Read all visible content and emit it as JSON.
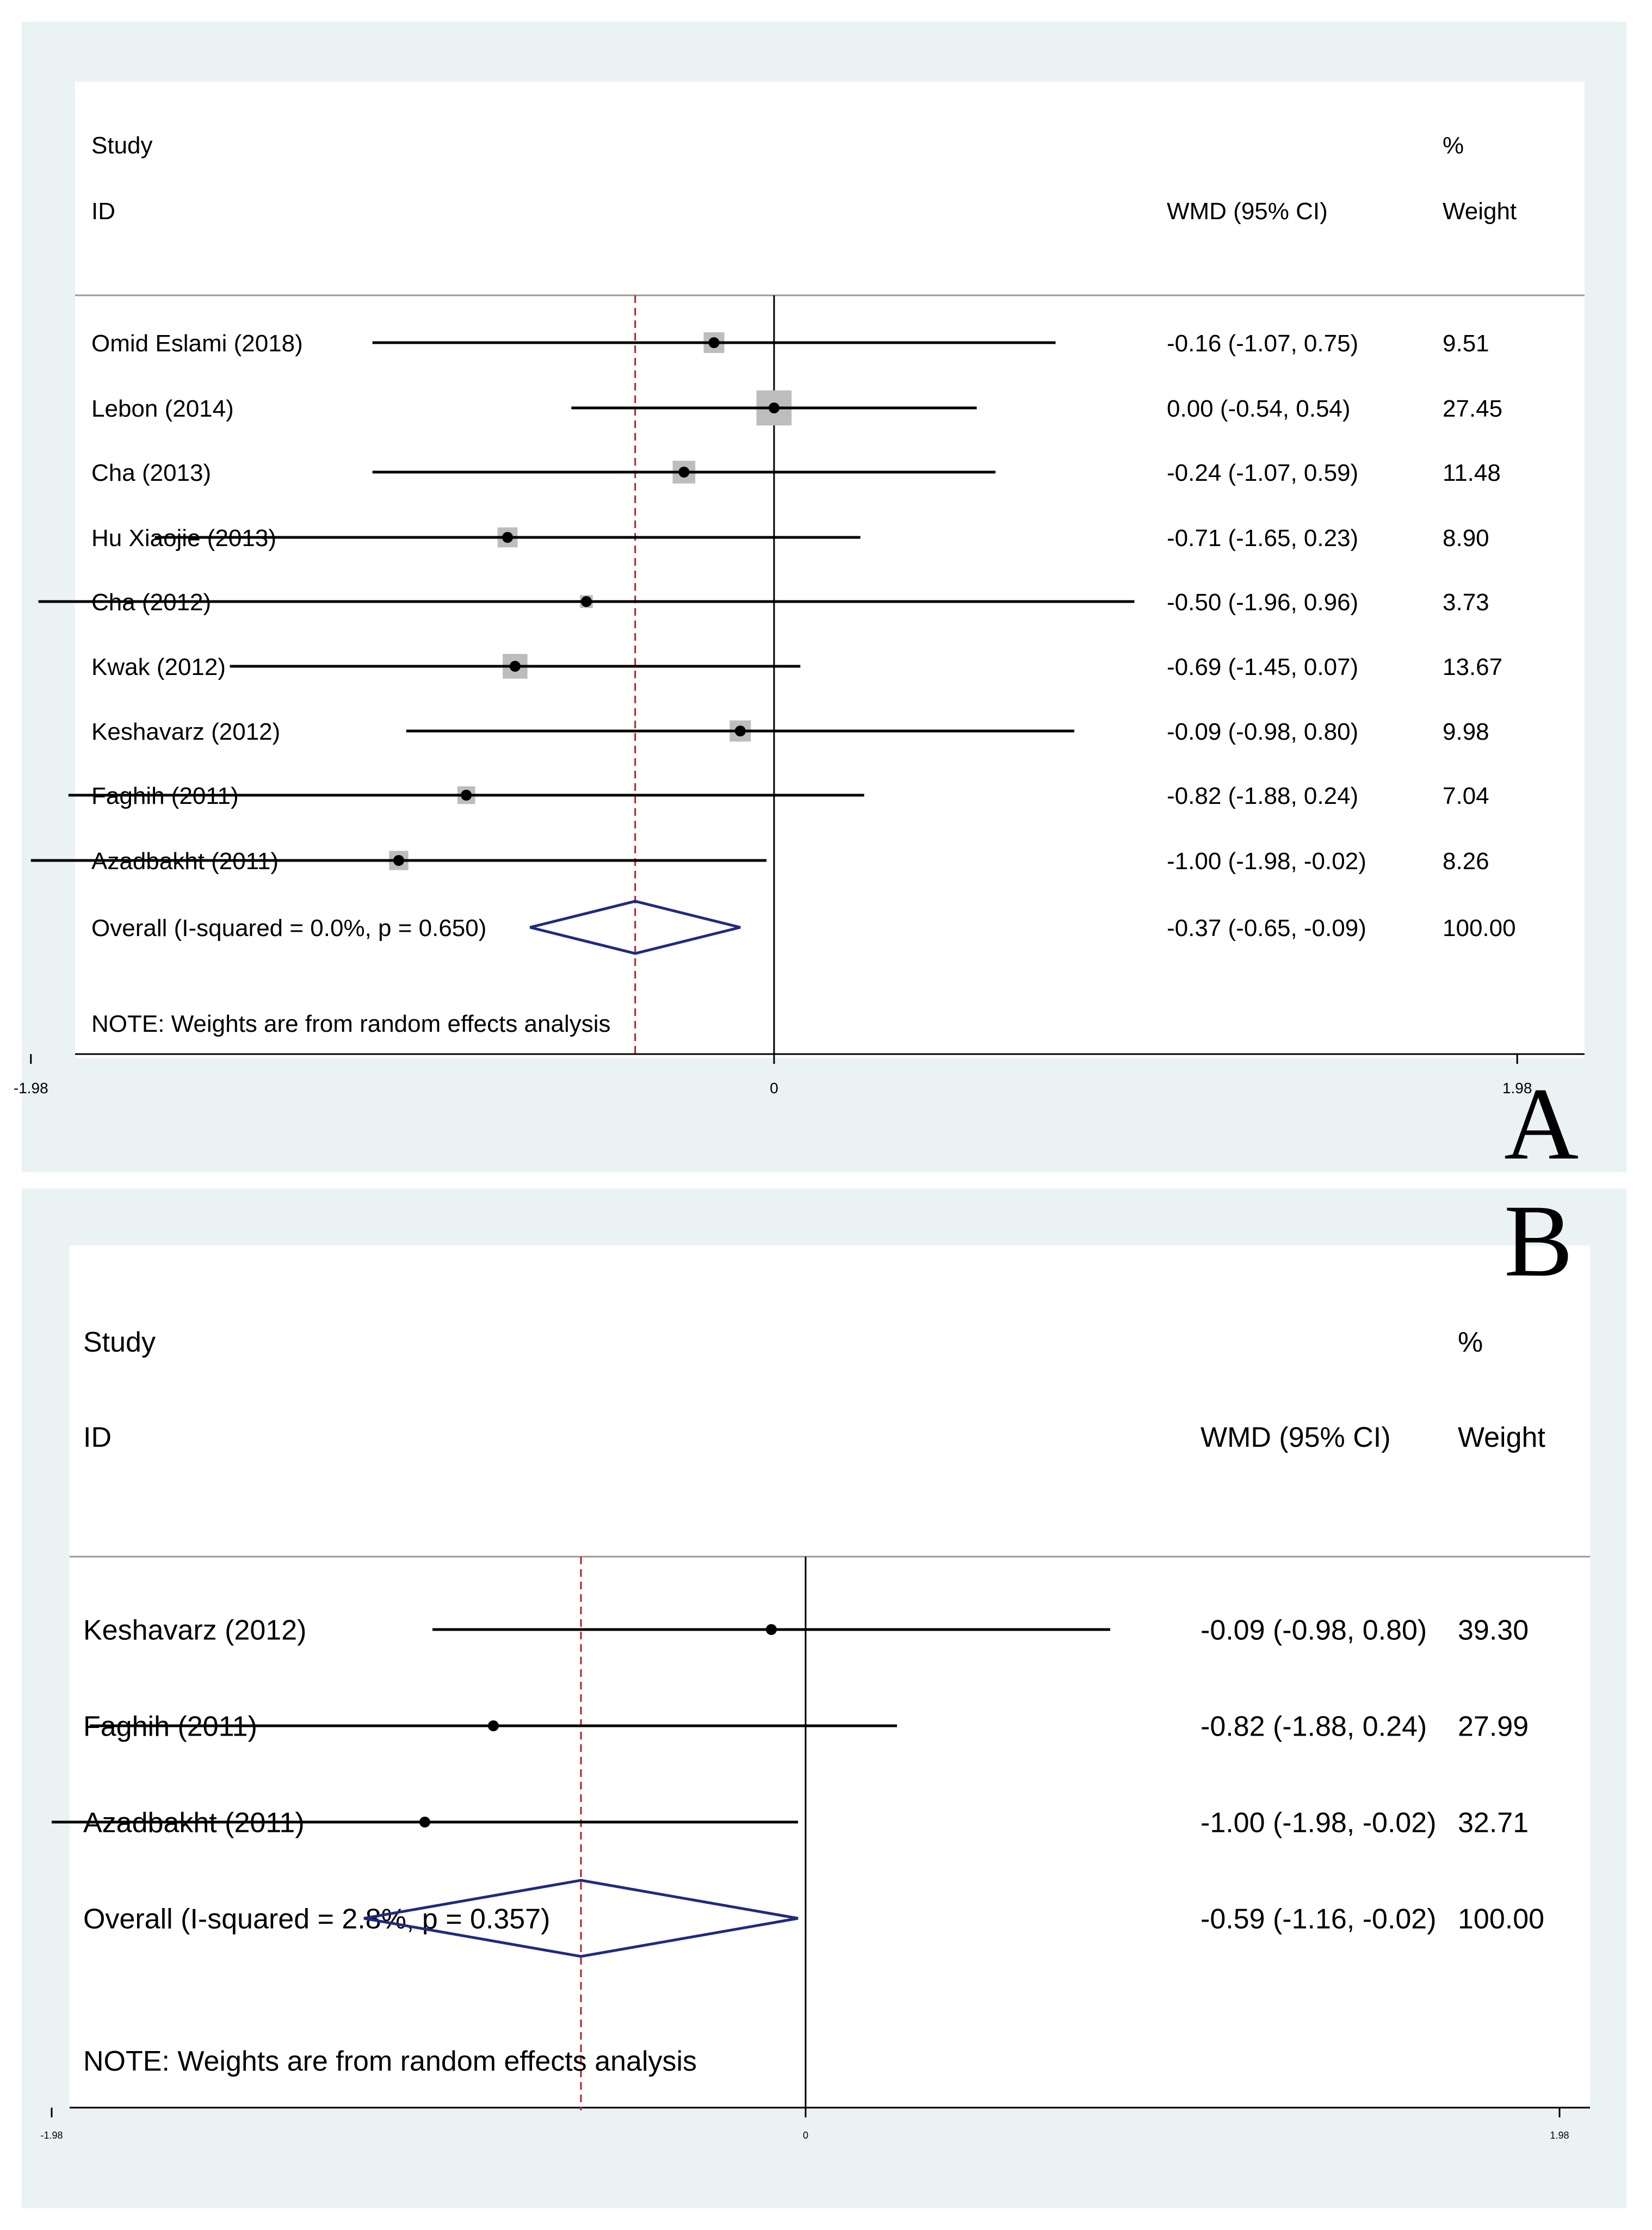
{
  "chart_data": [
    {
      "panel_label": "A",
      "type": "forest",
      "headers": {
        "study": "Study",
        "id": "ID",
        "effect": "WMD (95% CI)",
        "pct": "%",
        "weight": "Weight"
      },
      "studies": [
        {
          "name": "Omid Eslami (2018)",
          "wmd": -0.16,
          "lo": -1.07,
          "hi": 0.75,
          "ci_text": "-0.16 (-1.07, 0.75)",
          "weight": 9.51,
          "weight_text": "9.51"
        },
        {
          "name": "Lebon (2014)",
          "wmd": 0.0,
          "lo": -0.54,
          "hi": 0.54,
          "ci_text": "0.00 (-0.54, 0.54)",
          "weight": 27.45,
          "weight_text": "27.45"
        },
        {
          "name": "Cha (2013)",
          "wmd": -0.24,
          "lo": -1.07,
          "hi": 0.59,
          "ci_text": "-0.24 (-1.07, 0.59)",
          "weight": 11.48,
          "weight_text": "11.48"
        },
        {
          "name": "Hu Xiaojie (2013)",
          "wmd": -0.71,
          "lo": -1.65,
          "hi": 0.23,
          "ci_text": "-0.71 (-1.65, 0.23)",
          "weight": 8.9,
          "weight_text": "8.90"
        },
        {
          "name": "Cha (2012)",
          "wmd": -0.5,
          "lo": -1.96,
          "hi": 0.96,
          "ci_text": "-0.50 (-1.96, 0.96)",
          "weight": 3.73,
          "weight_text": "3.73"
        },
        {
          "name": "Kwak (2012)",
          "wmd": -0.69,
          "lo": -1.45,
          "hi": 0.07,
          "ci_text": "-0.69 (-1.45, 0.07)",
          "weight": 13.67,
          "weight_text": "13.67"
        },
        {
          "name": "Keshavarz (2012)",
          "wmd": -0.09,
          "lo": -0.98,
          "hi": 0.8,
          "ci_text": "-0.09 (-0.98, 0.80)",
          "weight": 9.98,
          "weight_text": "9.98"
        },
        {
          "name": "Faghih (2011)",
          "wmd": -0.82,
          "lo": -1.88,
          "hi": 0.24,
          "ci_text": "-0.82 (-1.88, 0.24)",
          "weight": 7.04,
          "weight_text": "7.04"
        },
        {
          "name": "Azadbakht (2011)",
          "wmd": -1.0,
          "lo": -1.98,
          "hi": -0.02,
          "ci_text": "-1.00 (-1.98, -0.02)",
          "weight": 8.26,
          "weight_text": "8.26"
        }
      ],
      "overall": {
        "label": "Overall  (I-squared = 0.0%, p = 0.650)",
        "wmd": -0.37,
        "lo": -0.65,
        "hi": -0.09,
        "ci_text": "-0.37 (-0.65, -0.09)",
        "weight_text": "100.00"
      },
      "note": "NOTE: Weights are from random effects analysis",
      "axis": {
        "min": -1.98,
        "max": 1.98,
        "ticks": [
          -1.98,
          0,
          1.98
        ],
        "tick_labels": [
          "-1.98",
          "0",
          "1.98"
        ]
      },
      "colors": {
        "ci_line": "#000000",
        "box": "#bdbdbd",
        "diamond": "#1f2a80",
        "pooled_line": "#b22222",
        "frame": "#eaf2f3"
      }
    },
    {
      "panel_label": "B",
      "type": "forest",
      "headers": {
        "study": "Study",
        "id": "ID",
        "effect": "WMD (95% CI)",
        "pct": "%",
        "weight": "Weight"
      },
      "studies": [
        {
          "name": "Keshavarz (2012)",
          "wmd": -0.09,
          "lo": -0.98,
          "hi": 0.8,
          "ci_text": "-0.09 (-0.98, 0.80)",
          "weight": 39.3,
          "weight_text": "39.30"
        },
        {
          "name": "Faghih (2011)",
          "wmd": -0.82,
          "lo": -1.88,
          "hi": 0.24,
          "ci_text": "-0.82 (-1.88, 0.24)",
          "weight": 27.99,
          "weight_text": "27.99"
        },
        {
          "name": "Azadbakht (2011)",
          "wmd": -1.0,
          "lo": -1.98,
          "hi": -0.02,
          "ci_text": "-1.00 (-1.98, -0.02)",
          "weight": 32.71,
          "weight_text": "32.71"
        }
      ],
      "overall": {
        "label": "Overall  (I-squared = 2.8%, p = 0.357)",
        "wmd": -0.59,
        "lo": -1.16,
        "hi": -0.02,
        "ci_text": "-0.59 (-1.16, -0.02)",
        "weight_text": "100.00"
      },
      "note": "NOTE: Weights are from random effects analysis",
      "axis": {
        "min": -1.98,
        "max": 1.98,
        "ticks": [
          -1.98,
          0,
          1.98
        ],
        "tick_labels": [
          "-1.98",
          "0",
          "1.98"
        ]
      },
      "colors": {
        "ci_line": "#000000",
        "box": "#cfcfcf",
        "diamond": "#1f2a80",
        "pooled_line": "#b22222",
        "frame": "#eaf2f3"
      }
    }
  ]
}
